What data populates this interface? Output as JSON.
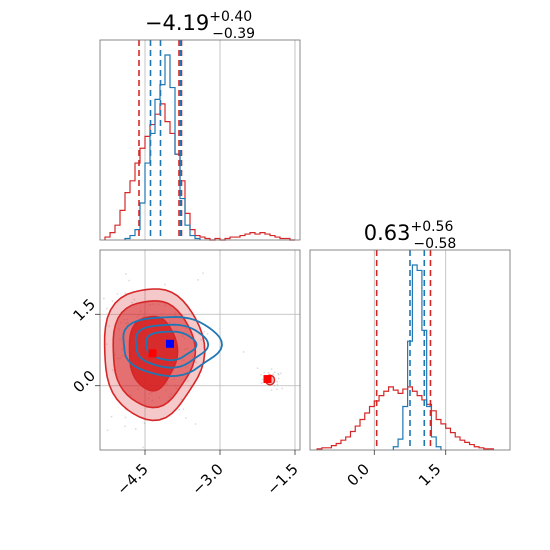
{
  "colors": {
    "blue": "#1f77b4",
    "red": "#d62728",
    "marker_blue": "#0000ff",
    "marker_red": "#ff0000"
  },
  "chart_data": [
    {
      "type": "histogram",
      "panel": "top-left",
      "title_value": "−4.19",
      "title_plus": "+0.40",
      "title_minus": "−0.39",
      "xlim": [
        -5.4,
        -1.4
      ],
      "grid": true,
      "series": [
        {
          "color": "blue",
          "bin_edges": [
            -4.9,
            -4.8,
            -4.7,
            -4.6,
            -4.5,
            -4.4,
            -4.3,
            -4.2,
            -4.1,
            -4.0,
            -3.9,
            -3.8,
            -3.7,
            -3.6,
            -3.5,
            -3.4
          ],
          "counts": [
            1,
            3,
            7,
            25,
            52,
            72,
            95,
            105,
            125,
            103,
            58,
            28,
            10,
            3,
            1
          ],
          "quantile_lines": [
            -4.39,
            -4.19,
            -3.79
          ]
        },
        {
          "color": "red",
          "bin_edges": [
            -5.3,
            -5.2,
            -5.1,
            -5.0,
            -4.9,
            -4.8,
            -4.7,
            -4.6,
            -4.5,
            -4.4,
            -4.3,
            -4.2,
            -4.1,
            -4.0,
            -3.9,
            -3.8,
            -3.7,
            -3.6,
            -3.5,
            -3.4,
            -3.3,
            -3.2,
            -3.1,
            -3.0,
            -2.9,
            -2.8,
            -2.7,
            -2.6,
            -2.5,
            -2.4,
            -2.3,
            -2.2,
            -2.1,
            -2.0,
            -1.9,
            -1.8,
            -1.7,
            -1.6,
            -1.5
          ],
          "counts": [
            2,
            5,
            10,
            20,
            32,
            40,
            52,
            62,
            70,
            78,
            85,
            92,
            80,
            72,
            58,
            40,
            18,
            7,
            3,
            2,
            1,
            0,
            1,
            0,
            1,
            2,
            2,
            3,
            4,
            5,
            4,
            5,
            4,
            3,
            2,
            1,
            1,
            0
          ],
          "quantile_lines": [
            -4.62,
            -3.82,
            -3.77
          ]
        }
      ]
    },
    {
      "type": "scatter-contour",
      "panel": "bottom-left",
      "xlim": [
        -5.4,
        -1.4
      ],
      "ylim": [
        -1.35,
        2.85
      ],
      "x_ticks": [
        -4.5,
        -3.0,
        -1.5
      ],
      "x_tick_labels": [
        "−4.5",
        "−3.0",
        "−1.5"
      ],
      "y_ticks": [
        0.0,
        1.5
      ],
      "y_tick_labels": [
        "0.0",
        "1.5"
      ],
      "grid": true,
      "series": [
        {
          "color": "red",
          "filled": true,
          "center": [
            -4.35,
            0.7
          ],
          "levels": [
            {
              "rx": 0.48,
              "ry": 0.78
            },
            {
              "rx": 0.82,
              "ry": 1.12
            },
            {
              "rx": 1.0,
              "ry": 1.38
            }
          ],
          "secondary": {
            "center": [
              -2.0,
              0.12
            ],
            "rx": 0.09,
            "ry": 0.1
          },
          "markers": [
            [
              -4.35,
              0.68
            ],
            [
              -2.05,
              0.14
            ]
          ]
        },
        {
          "color": "blue",
          "filled": false,
          "center": [
            -4.0,
            0.85
          ],
          "levels": [
            {
              "rx": 0.5,
              "ry": 0.3
            },
            {
              "rx": 0.72,
              "ry": 0.45
            },
            {
              "rx": 0.98,
              "ry": 0.62
            }
          ],
          "markers": [
            [
              -4.0,
              0.88
            ]
          ]
        }
      ]
    },
    {
      "type": "histogram",
      "panel": "bottom-right",
      "title_value": "0.63",
      "title_plus": "+0.56",
      "title_minus": "−0.58",
      "xlim": [
        -1.35,
        2.85
      ],
      "x_ticks": [
        0.0,
        1.5
      ],
      "x_tick_labels": [
        "0.0",
        "1.5"
      ],
      "grid": true,
      "series": [
        {
          "color": "blue",
          "bin_edges": [
            0.4,
            0.5,
            0.6,
            0.7,
            0.8,
            0.9,
            1.0,
            1.1,
            1.2,
            1.3,
            1.4
          ],
          "counts": [
            3,
            10,
            40,
            100,
            170,
            165,
            110,
            40,
            12,
            3
          ],
          "quantile_lines": [
            0.75,
            1.05
          ]
        },
        {
          "color": "red",
          "bin_edges": [
            -1.2,
            -1.1,
            -1.0,
            -0.9,
            -0.8,
            -0.7,
            -0.6,
            -0.5,
            -0.4,
            -0.3,
            -0.2,
            -0.1,
            0.0,
            0.1,
            0.2,
            0.3,
            0.4,
            0.5,
            0.6,
            0.7,
            0.8,
            0.9,
            1.0,
            1.1,
            1.2,
            1.3,
            1.4,
            1.5,
            1.6,
            1.7,
            1.8,
            1.9,
            2.0,
            2.1,
            2.2,
            2.3,
            2.4,
            2.5
          ],
          "counts": [
            1,
            2,
            2,
            4,
            6,
            9,
            12,
            17,
            22,
            28,
            34,
            40,
            45,
            50,
            54,
            58,
            55,
            52,
            56,
            58,
            54,
            50,
            46,
            42,
            36,
            28,
            24,
            20,
            16,
            12,
            9,
            7,
            5,
            3,
            2,
            1,
            1
          ],
          "quantile_lines": [
            0.05,
            1.18
          ]
        }
      ]
    }
  ]
}
